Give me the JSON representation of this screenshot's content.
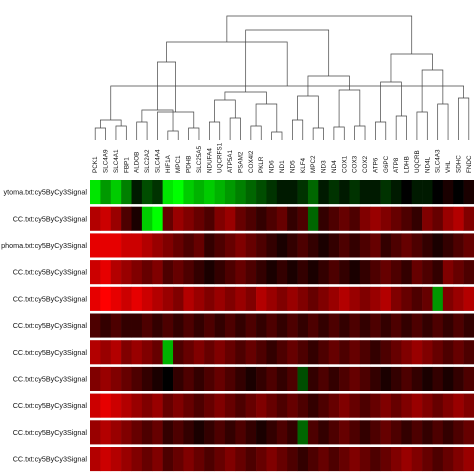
{
  "chart_data": {
    "type": "heatmap",
    "columns": [
      "PCK1",
      "SLC4A9",
      "SLC4A1",
      "FBP1",
      "ALDOB",
      "SLC2A2",
      "SLC4A4",
      "HIF1A",
      "MPC1",
      "PDHB",
      "SLC25A5",
      "NDUFA4",
      "UQCRFS1",
      "ATP5A1",
      "PSAM2",
      "COX4I2",
      "PKLR",
      "ND6",
      "ND1",
      "ND5",
      "KLF4",
      "MPC2",
      "ND3",
      "ND4",
      "COX1",
      "COX3",
      "COX2",
      "ATP6",
      "G6PC",
      "ATP8",
      "LDHB",
      "UQCRB",
      "ND4L",
      "SLC4A3",
      "VHL",
      "SDHC",
      "FNDC"
    ],
    "rows": [
      "ytoma.txt:cy5ByCy3Signal",
      "CC.txt:cy5ByCy3Signal",
      "phoma.txt:cy5ByCy3Signal",
      "CC.txt:cy5ByCy3Signal",
      "CC.txt:cy5ByCy3Signal",
      "CC.txt:cy5ByCy3Signal",
      "CC.txt:cy5ByCy3Signal",
      "CC.txt:cy5ByCy3Signal",
      "CC.txt:cy5ByCy3Signal",
      "CC.txt:cy5ByCy3Signal",
      "CC.txt:cy5ByCy3Signal"
    ],
    "values": [
      [
        -0.9,
        -0.6,
        -0.8,
        -0.5,
        -0.1,
        -0.3,
        -0.2,
        -0.9,
        -1.0,
        -0.8,
        -0.7,
        -0.8,
        -0.7,
        -0.6,
        -0.5,
        -0.4,
        -0.3,
        -0.2,
        -0.1,
        -0.1,
        -0.2,
        -0.4,
        -0.1,
        -0.2,
        -0.1,
        -0.2,
        -0.1,
        -0.1,
        -0.2,
        -0.1,
        0.0,
        -0.1,
        -0.1,
        0.0,
        0.1,
        0.0,
        0.1
      ],
      [
        0.7,
        0.8,
        0.6,
        0.3,
        0.1,
        -0.8,
        -1.0,
        0.4,
        0.6,
        0.5,
        0.4,
        0.3,
        0.5,
        0.6,
        0.4,
        0.3,
        0.2,
        0.3,
        0.4,
        0.2,
        0.3,
        -0.4,
        0.2,
        0.3,
        0.4,
        0.3,
        0.5,
        0.6,
        0.5,
        0.4,
        0.3,
        0.2,
        0.5,
        0.4,
        0.6,
        0.7,
        0.5
      ],
      [
        0.9,
        0.9,
        0.9,
        0.8,
        0.8,
        0.7,
        0.6,
        0.5,
        0.4,
        0.3,
        0.4,
        0.2,
        0.3,
        0.4,
        0.5,
        0.4,
        0.3,
        0.2,
        0.1,
        0.2,
        0.3,
        0.2,
        0.1,
        0.2,
        0.3,
        0.2,
        0.3,
        0.4,
        0.2,
        0.3,
        0.4,
        0.3,
        0.2,
        0.1,
        0.2,
        0.3,
        0.4
      ],
      [
        0.8,
        0.9,
        0.7,
        0.6,
        0.5,
        0.4,
        0.5,
        0.3,
        0.4,
        0.3,
        0.2,
        0.1,
        0.2,
        0.3,
        0.4,
        0.3,
        0.2,
        0.1,
        0.2,
        0.1,
        0.2,
        0.1,
        0.2,
        0.3,
        0.2,
        0.1,
        0.2,
        0.3,
        0.4,
        0.3,
        0.2,
        0.4,
        0.3,
        0.2,
        0.5,
        0.4,
        0.3
      ],
      [
        0.9,
        1.0,
        0.9,
        0.8,
        0.9,
        0.8,
        0.7,
        0.6,
        0.5,
        0.7,
        0.6,
        0.5,
        0.6,
        0.5,
        0.6,
        0.5,
        0.7,
        0.6,
        0.5,
        0.6,
        0.5,
        0.4,
        0.5,
        0.6,
        0.7,
        0.6,
        0.5,
        0.6,
        0.7,
        0.5,
        0.4,
        0.3,
        0.4,
        -0.6,
        0.5,
        0.6,
        0.7
      ],
      [
        0.3,
        0.2,
        0.3,
        0.2,
        0.2,
        0.3,
        0.2,
        0.3,
        0.2,
        0.3,
        0.2,
        0.3,
        0.2,
        0.3,
        0.2,
        0.3,
        0.2,
        0.3,
        0.2,
        0.3,
        0.2,
        0.3,
        0.2,
        0.3,
        0.2,
        0.3,
        0.2,
        0.3,
        0.2,
        0.3,
        0.2,
        0.3,
        0.2,
        0.3,
        0.2,
        0.3,
        0.2
      ],
      [
        0.7,
        0.6,
        0.7,
        0.5,
        0.6,
        0.5,
        0.4,
        -0.7,
        0.3,
        0.4,
        0.5,
        0.4,
        0.5,
        0.4,
        0.3,
        0.4,
        0.3,
        0.2,
        0.3,
        0.4,
        0.3,
        0.2,
        0.3,
        0.4,
        0.3,
        0.4,
        0.3,
        0.2,
        0.3,
        0.4,
        0.5,
        0.6,
        0.5,
        0.4,
        0.3,
        0.4,
        0.3
      ],
      [
        0.5,
        0.6,
        0.5,
        0.4,
        0.3,
        0.2,
        0.1,
        0.0,
        0.2,
        0.3,
        0.2,
        0.3,
        0.4,
        0.3,
        0.2,
        0.1,
        0.2,
        0.3,
        0.2,
        0.3,
        -0.3,
        0.2,
        0.3,
        0.2,
        0.3,
        0.4,
        0.3,
        0.2,
        0.1,
        0.2,
        0.3,
        0.2,
        0.1,
        0.2,
        0.1,
        0.2,
        0.3
      ],
      [
        0.8,
        0.9,
        0.8,
        0.7,
        0.6,
        0.5,
        0.6,
        0.4,
        0.5,
        0.4,
        0.3,
        0.4,
        0.5,
        0.4,
        0.3,
        0.4,
        0.5,
        0.4,
        0.3,
        0.4,
        0.3,
        0.2,
        0.3,
        0.4,
        0.5,
        0.4,
        0.3,
        0.4,
        0.5,
        0.4,
        0.5,
        0.6,
        0.5,
        0.4,
        0.5,
        0.6,
        0.5
      ],
      [
        0.6,
        0.7,
        0.6,
        0.5,
        0.4,
        0.3,
        0.4,
        0.2,
        0.3,
        0.2,
        0.1,
        0.2,
        0.3,
        0.2,
        0.3,
        0.2,
        0.1,
        0.2,
        0.3,
        0.2,
        -0.4,
        0.3,
        0.2,
        0.3,
        0.4,
        0.3,
        0.2,
        0.3,
        0.4,
        0.3,
        0.2,
        0.3,
        0.2,
        0.3,
        0.2,
        0.3,
        0.4
      ],
      [
        0.7,
        0.8,
        0.7,
        0.6,
        0.5,
        0.4,
        0.5,
        0.3,
        0.4,
        0.5,
        0.4,
        0.3,
        0.4,
        0.5,
        0.4,
        0.3,
        0.4,
        0.5,
        0.4,
        0.3,
        0.2,
        0.3,
        0.4,
        0.3,
        0.4,
        0.5,
        0.4,
        0.3,
        0.4,
        0.5,
        0.6,
        0.5,
        0.4,
        0.3,
        0.4,
        0.5,
        0.6
      ]
    ],
    "colorscale": {
      "low": "#00ff00",
      "mid": "#000000",
      "high": "#ff0000"
    },
    "dendrogram": "column hierarchical clustering tree (top)",
    "legend": "none"
  }
}
